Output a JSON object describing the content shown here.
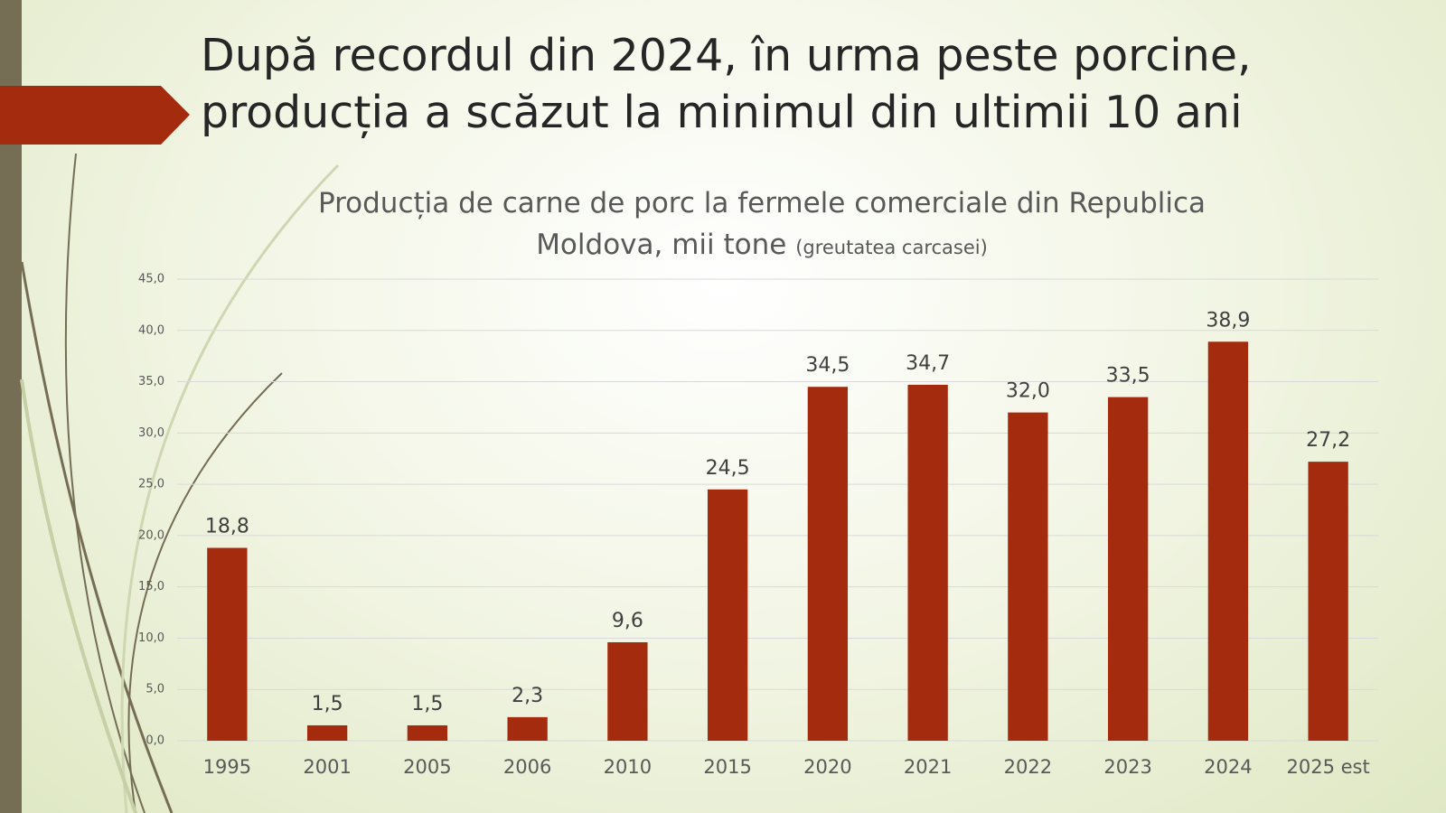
{
  "slide_title": [
    "După recordul din 2024, în urma peste porcine,",
    "producția a scăzut la minimul din ultimii 10 ani"
  ],
  "chart_data": {
    "type": "bar",
    "title": "Producția de carne de porc la fermele comerciale din Republica Moldova, mii tone",
    "subtitle": "(greutatea carcasei)",
    "categories": [
      "1995",
      "2001",
      "2005",
      "2006",
      "2010",
      "2015",
      "2020",
      "2021",
      "2022",
      "2023",
      "2024",
      "2025 est"
    ],
    "values": [
      18.8,
      1.5,
      1.5,
      2.3,
      9.6,
      24.5,
      34.5,
      34.7,
      32.0,
      33.5,
      38.9,
      27.2
    ],
    "value_labels": [
      "18,8",
      "1,5",
      "1,5",
      "2,3",
      "9,6",
      "24,5",
      "34,5",
      "34,7",
      "32,0",
      "33,5",
      "38,9",
      "27,2"
    ],
    "color": "#a52b0e",
    "ylim": [
      0,
      45
    ],
    "yticks": [
      {
        "value": 0,
        "label": "0,0"
      },
      {
        "value": 5,
        "label": "5,0"
      },
      {
        "value": 10,
        "label": "10,0"
      },
      {
        "value": 15,
        "label": "15,0"
      },
      {
        "value": 20,
        "label": "20,0"
      },
      {
        "value": 25,
        "label": "25,0"
      },
      {
        "value": 30,
        "label": "30,0"
      },
      {
        "value": 35,
        "label": "35,0"
      },
      {
        "value": 40,
        "label": "40,0"
      },
      {
        "value": 45,
        "label": "45,0"
      }
    ],
    "grid": true
  }
}
